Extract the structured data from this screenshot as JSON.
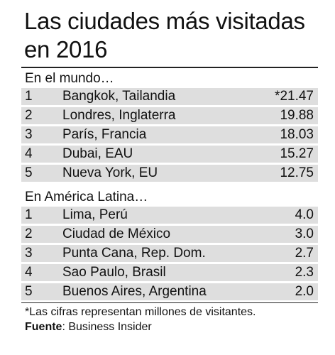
{
  "title_line1": "Las ciudades más visitadas",
  "title_line2": "en 2016",
  "world": {
    "heading": "En el mundo…",
    "rows": [
      {
        "rank": "1",
        "city": "Bangkok, Tailandia",
        "value": "*21.47"
      },
      {
        "rank": "2",
        "city": "Londres, Inglaterra",
        "value": "19.88"
      },
      {
        "rank": "3",
        "city": "París, Francia",
        "value": "18.03"
      },
      {
        "rank": "4",
        "city": "Dubai, EAU",
        "value": "15.27"
      },
      {
        "rank": "5",
        "city": "Nueva York, EU",
        "value": "12.75"
      }
    ]
  },
  "latam": {
    "heading": "En América Latina…",
    "rows": [
      {
        "rank": "1",
        "city": "Lima, Perú",
        "value": "4.0"
      },
      {
        "rank": "2",
        "city": "Ciudad de México",
        "value": "3.0"
      },
      {
        "rank": "3",
        "city": "Punta Cana, Rep. Dom.",
        "value": "2.7"
      },
      {
        "rank": "4",
        "city": "Sao Paulo, Brasil",
        "value": "2.3"
      },
      {
        "rank": "5",
        "city": "Buenos Aires, Argentina",
        "value": "2.0"
      }
    ]
  },
  "footnote": "*Las cifras representan millones de visitantes.",
  "source_label": "Fuente",
  "source_value": ": Business Insider",
  "colors": {
    "row_shade": "#dedede",
    "rule": "#222222"
  }
}
